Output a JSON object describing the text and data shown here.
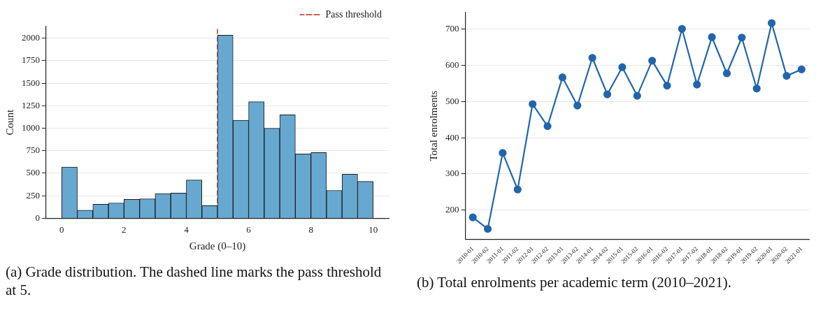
{
  "chart_data": [
    {
      "type": "histogram",
      "xlabel": "Grade (0–10)",
      "ylabel": "Count",
      "color": "#67a8d0",
      "bins": [
        0,
        0.5,
        1,
        1.5,
        2,
        2.5,
        3,
        3.5,
        4,
        4.5,
        5,
        5.5,
        6,
        6.5,
        7,
        7.5,
        8,
        8.5,
        9,
        9.5,
        10
      ],
      "values": [
        570,
        90,
        155,
        170,
        210,
        215,
        275,
        280,
        425,
        140,
        2035,
        1090,
        1295,
        1000,
        1150,
        715,
        730,
        310,
        490,
        410
      ],
      "xlim": [
        -0.5,
        10.5
      ],
      "xticks": [
        0,
        2,
        4,
        6,
        8,
        10
      ],
      "ylim": [
        0,
        2130
      ],
      "yticks": [
        0,
        250,
        500,
        750,
        1000,
        1250,
        1500,
        1750,
        2000
      ],
      "ref_lines": [
        {
          "axis": "x",
          "value": 5,
          "label": "Pass threshold",
          "color": "#d6604d",
          "line_style": "dashed"
        }
      ],
      "grid": "y",
      "legend": "top right",
      "annotations": [
        "(a) Grade distribution. The dashed line marks the pass threshold at 5."
      ]
    },
    {
      "type": "line",
      "ylabel": "Total enrolments",
      "color": "#2166ac",
      "marker": "circle",
      "categories": [
        "2010-01",
        "2010-02",
        "2011-01",
        "2011-02",
        "2012-01",
        "2012-02",
        "2013-01",
        "2013-02",
        "2014-01",
        "2014-02",
        "2015-01",
        "2015-02",
        "2016-01",
        "2016-02",
        "2017-01",
        "2017-02",
        "2018-01",
        "2018-02",
        "2019-01",
        "2019-02",
        "2020-01",
        "2020-02",
        "2021-01"
      ],
      "values": [
        180,
        148,
        358,
        257,
        493,
        432,
        567,
        489,
        621,
        520,
        595,
        516,
        613,
        544,
        701,
        547,
        678,
        578,
        677,
        536,
        717,
        571,
        589
      ],
      "ylim": [
        120,
        746
      ],
      "yticks": [
        200,
        300,
        400,
        500,
        600,
        700
      ],
      "grid": "y",
      "annotations": [
        "(b) Total enrolments per academic term (2010–2021)."
      ]
    }
  ]
}
